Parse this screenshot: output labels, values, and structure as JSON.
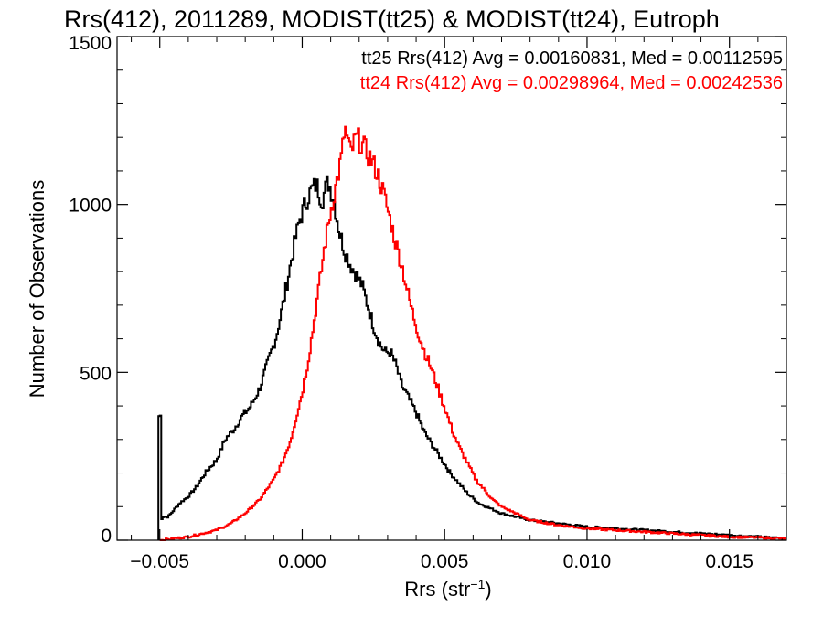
{
  "chart_data": {
    "type": "histogram",
    "title": "Rrs(412), 2011289, MODIST(tt25) & MODIST(tt24), Eutroph",
    "xlabel": "Rrs (str",
    "xlabel_sup": "−1",
    "xlabel_close": ")",
    "ylabel": "Number of Observations",
    "xlim": [
      -0.0065,
      0.017
    ],
    "ylim": [
      0,
      1500
    ],
    "xticks": [
      -0.005,
      0.0,
      0.005,
      0.01,
      0.015
    ],
    "xtick_labels": [
      "−0.005",
      "0.000",
      "0.005",
      "0.010",
      "0.015"
    ],
    "yticks": [
      0,
      500,
      1000,
      1500
    ],
    "ytick_labels": [
      "0",
      "500",
      "1000",
      "1500"
    ],
    "grid": false,
    "legend_position": "top-right",
    "series": [
      {
        "label": "tt25 Rrs(412) Avg = 0.00160831, Med = 0.00112595",
        "color": "#000000",
        "points": [
          [
            -0.00505,
            0
          ],
          [
            -0.005,
            370
          ],
          [
            -0.00495,
            60
          ],
          [
            -0.0049,
            70
          ],
          [
            -0.0047,
            70
          ],
          [
            -0.0045,
            90
          ],
          [
            -0.0043,
            110
          ],
          [
            -0.004,
            130
          ],
          [
            -0.0037,
            160
          ],
          [
            -0.0034,
            200
          ],
          [
            -0.003,
            240
          ],
          [
            -0.0027,
            300
          ],
          [
            -0.0024,
            330
          ],
          [
            -0.0021,
            370
          ],
          [
            -0.0018,
            400
          ],
          [
            -0.0015,
            450
          ],
          [
            -0.0012,
            530
          ],
          [
            -0.0009,
            610
          ],
          [
            -0.0007,
            690
          ],
          [
            -0.0005,
            780
          ],
          [
            -0.0003,
            870
          ],
          [
            -0.0001,
            950
          ],
          [
            0.0001,
            1000
          ],
          [
            0.0003,
            1040
          ],
          [
            0.0005,
            1060
          ],
          [
            0.0007,
            1010
          ],
          [
            0.0009,
            1070
          ],
          [
            0.0011,
            1020
          ],
          [
            0.0013,
            920
          ],
          [
            0.0015,
            860
          ],
          [
            0.0017,
            820
          ],
          [
            0.0019,
            790
          ],
          [
            0.0021,
            760
          ],
          [
            0.0023,
            700
          ],
          [
            0.0025,
            640
          ],
          [
            0.0027,
            590
          ],
          [
            0.0029,
            560
          ],
          [
            0.0031,
            560
          ],
          [
            0.0033,
            520
          ],
          [
            0.0035,
            460
          ],
          [
            0.0037,
            430
          ],
          [
            0.004,
            380
          ],
          [
            0.0043,
            320
          ],
          [
            0.0046,
            280
          ],
          [
            0.0049,
            240
          ],
          [
            0.0052,
            200
          ],
          [
            0.0055,
            170
          ],
          [
            0.0058,
            140
          ],
          [
            0.0062,
            110
          ],
          [
            0.0066,
            95
          ],
          [
            0.007,
            80
          ],
          [
            0.0075,
            70
          ],
          [
            0.008,
            60
          ],
          [
            0.009,
            50
          ],
          [
            0.01,
            40
          ],
          [
            0.011,
            35
          ],
          [
            0.012,
            30
          ],
          [
            0.013,
            25
          ],
          [
            0.014,
            20
          ],
          [
            0.015,
            15
          ],
          [
            0.016,
            10
          ],
          [
            0.017,
            5
          ]
        ]
      },
      {
        "label": "tt24 Rrs(412) Avg = 0.00298964, Med = 0.00242536",
        "color": "#ff0000",
        "points": [
          [
            -0.005,
            0
          ],
          [
            -0.0045,
            5
          ],
          [
            -0.004,
            10
          ],
          [
            -0.0035,
            20
          ],
          [
            -0.003,
            30
          ],
          [
            -0.0025,
            50
          ],
          [
            -0.002,
            80
          ],
          [
            -0.0015,
            120
          ],
          [
            -0.001,
            180
          ],
          [
            -0.0007,
            230
          ],
          [
            -0.0004,
            300
          ],
          [
            -0.0002,
            370
          ],
          [
            0.0,
            440
          ],
          [
            0.0002,
            530
          ],
          [
            0.0004,
            640
          ],
          [
            0.0006,
            760
          ],
          [
            0.0008,
            880
          ],
          [
            0.001,
            980
          ],
          [
            0.0012,
            1060
          ],
          [
            0.0014,
            1150
          ],
          [
            0.0015,
            1230
          ],
          [
            0.0017,
            1150
          ],
          [
            0.0019,
            1200
          ],
          [
            0.0021,
            1180
          ],
          [
            0.0023,
            1150
          ],
          [
            0.0025,
            1120
          ],
          [
            0.0027,
            1080
          ],
          [
            0.0029,
            1020
          ],
          [
            0.0031,
            950
          ],
          [
            0.0033,
            880
          ],
          [
            0.0035,
            820
          ],
          [
            0.0037,
            740
          ],
          [
            0.0039,
            670
          ],
          [
            0.0041,
            610
          ],
          [
            0.0043,
            560
          ],
          [
            0.0045,
            520
          ],
          [
            0.0047,
            470
          ],
          [
            0.0049,
            420
          ],
          [
            0.0051,
            370
          ],
          [
            0.0053,
            320
          ],
          [
            0.0055,
            280
          ],
          [
            0.0058,
            230
          ],
          [
            0.0061,
            180
          ],
          [
            0.0064,
            150
          ],
          [
            0.0067,
            120
          ],
          [
            0.007,
            100
          ],
          [
            0.0075,
            80
          ],
          [
            0.008,
            60
          ],
          [
            0.009,
            45
          ],
          [
            0.01,
            35
          ],
          [
            0.011,
            30
          ],
          [
            0.012,
            25
          ],
          [
            0.013,
            20
          ],
          [
            0.014,
            15
          ],
          [
            0.015,
            10
          ],
          [
            0.016,
            8
          ],
          [
            0.017,
            5
          ]
        ]
      }
    ]
  }
}
